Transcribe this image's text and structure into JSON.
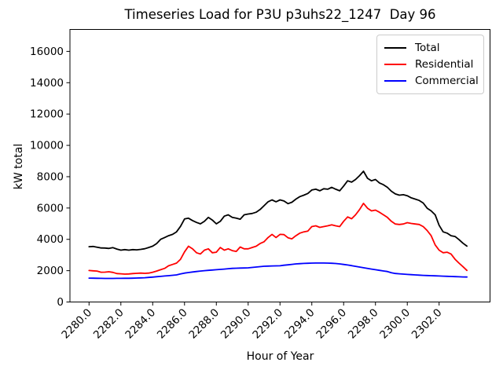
{
  "chart_data": {
    "type": "line",
    "title": "Timeseries Load for P3U p3uhs22_1247  Day 96",
    "xlabel": "Hour of Year",
    "ylabel": "kW total",
    "xlim": [
      2278.8,
      2305.2
    ],
    "ylim": [
      0,
      17400
    ],
    "grid": false,
    "legend_position": "upper right",
    "xtick_values": [
      2280,
      2282,
      2284,
      2286,
      2288,
      2290,
      2292,
      2294,
      2296,
      2298,
      2300,
      2302
    ],
    "xtick_labels": [
      "2280.0",
      "2282.0",
      "2284.0",
      "2286.0",
      "2288.0",
      "2290.0",
      "2292.0",
      "2294.0",
      "2296.0",
      "2298.0",
      "2300.0",
      "2302.0"
    ],
    "ytick_values": [
      0,
      2000,
      4000,
      6000,
      8000,
      10000,
      12000,
      14000,
      16000
    ],
    "ytick_labels": [
      "0",
      "2000",
      "4000",
      "6000",
      "8000",
      "10000",
      "12000",
      "14000",
      "16000"
    ],
    "x": [
      2280.0,
      2280.25,
      2280.5,
      2280.75,
      2281.0,
      2281.25,
      2281.5,
      2281.75,
      2282.0,
      2282.25,
      2282.5,
      2282.75,
      2283.0,
      2283.25,
      2283.5,
      2283.75,
      2284.0,
      2284.25,
      2284.5,
      2284.75,
      2285.0,
      2285.25,
      2285.5,
      2285.75,
      2286.0,
      2286.25,
      2286.5,
      2286.75,
      2287.0,
      2287.25,
      2287.5,
      2287.75,
      2288.0,
      2288.25,
      2288.5,
      2288.75,
      2289.0,
      2289.25,
      2289.5,
      2289.75,
      2290.0,
      2290.25,
      2290.5,
      2290.75,
      2291.0,
      2291.25,
      2291.5,
      2291.75,
      2292.0,
      2292.25,
      2292.5,
      2292.75,
      2293.0,
      2293.25,
      2293.5,
      2293.75,
      2294.0,
      2294.25,
      2294.5,
      2294.75,
      2295.0,
      2295.25,
      2295.5,
      2295.75,
      2296.0,
      2296.25,
      2296.5,
      2296.75,
      2297.0,
      2297.25,
      2297.5,
      2297.75,
      2298.0,
      2298.25,
      2298.5,
      2298.75,
      2299.0,
      2299.25,
      2299.5,
      2299.75,
      2300.0,
      2300.25,
      2300.5,
      2300.75,
      2301.0,
      2301.25,
      2301.5,
      2301.75,
      2302.0,
      2302.25,
      2302.5,
      2302.75,
      2303.0,
      2303.25,
      2303.5,
      2303.75
    ],
    "series": [
      {
        "name": "Total",
        "color": "#000000",
        "values": [
          3530,
          3545,
          3500,
          3450,
          3445,
          3420,
          3470,
          3380,
          3310,
          3345,
          3310,
          3345,
          3330,
          3360,
          3400,
          3480,
          3565,
          3730,
          4000,
          4115,
          4230,
          4315,
          4480,
          4830,
          5300,
          5350,
          5200,
          5080,
          4990,
          5150,
          5400,
          5230,
          4990,
          5150,
          5480,
          5565,
          5400,
          5350,
          5285,
          5565,
          5615,
          5650,
          5730,
          5900,
          6150,
          6400,
          6520,
          6400,
          6520,
          6450,
          6280,
          6370,
          6570,
          6730,
          6820,
          6930,
          7150,
          7200,
          7100,
          7230,
          7200,
          7320,
          7200,
          7100,
          7400,
          7735,
          7650,
          7820,
          8070,
          8350,
          7900,
          7735,
          7820,
          7600,
          7485,
          7320,
          7070,
          6900,
          6820,
          6850,
          6785,
          6650,
          6570,
          6485,
          6320,
          5985,
          5815,
          5565,
          4900,
          4480,
          4400,
          4230,
          4180,
          3980,
          3750,
          3565
        ]
      },
      {
        "name": "Residential",
        "color": "#ff0000",
        "values": [
          2010,
          1990,
          1977,
          1900,
          1905,
          1930,
          1890,
          1815,
          1800,
          1780,
          1790,
          1815,
          1830,
          1845,
          1830,
          1845,
          1900,
          1975,
          2060,
          2145,
          2310,
          2395,
          2480,
          2730,
          3200,
          3560,
          3400,
          3145,
          3065,
          3310,
          3395,
          3145,
          3180,
          3480,
          3310,
          3395,
          3280,
          3230,
          3510,
          3395,
          3395,
          3480,
          3560,
          3730,
          3845,
          4115,
          4315,
          4115,
          4315,
          4300,
          4100,
          4030,
          4230,
          4400,
          4480,
          4530,
          4815,
          4865,
          4765,
          4815,
          4865,
          4930,
          4865,
          4815,
          5150,
          5430,
          5315,
          5565,
          5900,
          6300,
          5985,
          5815,
          5865,
          5730,
          5565,
          5400,
          5150,
          4980,
          4950,
          4980,
          5065,
          5015,
          4980,
          4950,
          4815,
          4565,
          4230,
          3645,
          3310,
          3145,
          3180,
          3065,
          2730,
          2480,
          2250,
          2015
        ]
      },
      {
        "name": "Commercial",
        "color": "#0000ff",
        "values": [
          1525,
          1520,
          1515,
          1510,
          1505,
          1505,
          1505,
          1508,
          1510,
          1512,
          1515,
          1520,
          1530,
          1540,
          1550,
          1570,
          1590,
          1615,
          1635,
          1660,
          1680,
          1705,
          1730,
          1790,
          1845,
          1880,
          1915,
          1945,
          1977,
          2000,
          2020,
          2040,
          2062,
          2080,
          2100,
          2125,
          2145,
          2155,
          2165,
          2172,
          2180,
          2205,
          2230,
          2255,
          2280,
          2290,
          2300,
          2306,
          2312,
          2345,
          2370,
          2400,
          2430,
          2445,
          2460,
          2470,
          2480,
          2485,
          2488,
          2485,
          2480,
          2470,
          2455,
          2430,
          2395,
          2360,
          2320,
          2275,
          2230,
          2185,
          2140,
          2100,
          2060,
          2020,
          1980,
          1945,
          1870,
          1820,
          1800,
          1780,
          1760,
          1745,
          1730,
          1715,
          1700,
          1690,
          1680,
          1670,
          1660,
          1650,
          1640,
          1630,
          1620,
          1610,
          1600,
          1595
        ]
      }
    ]
  }
}
